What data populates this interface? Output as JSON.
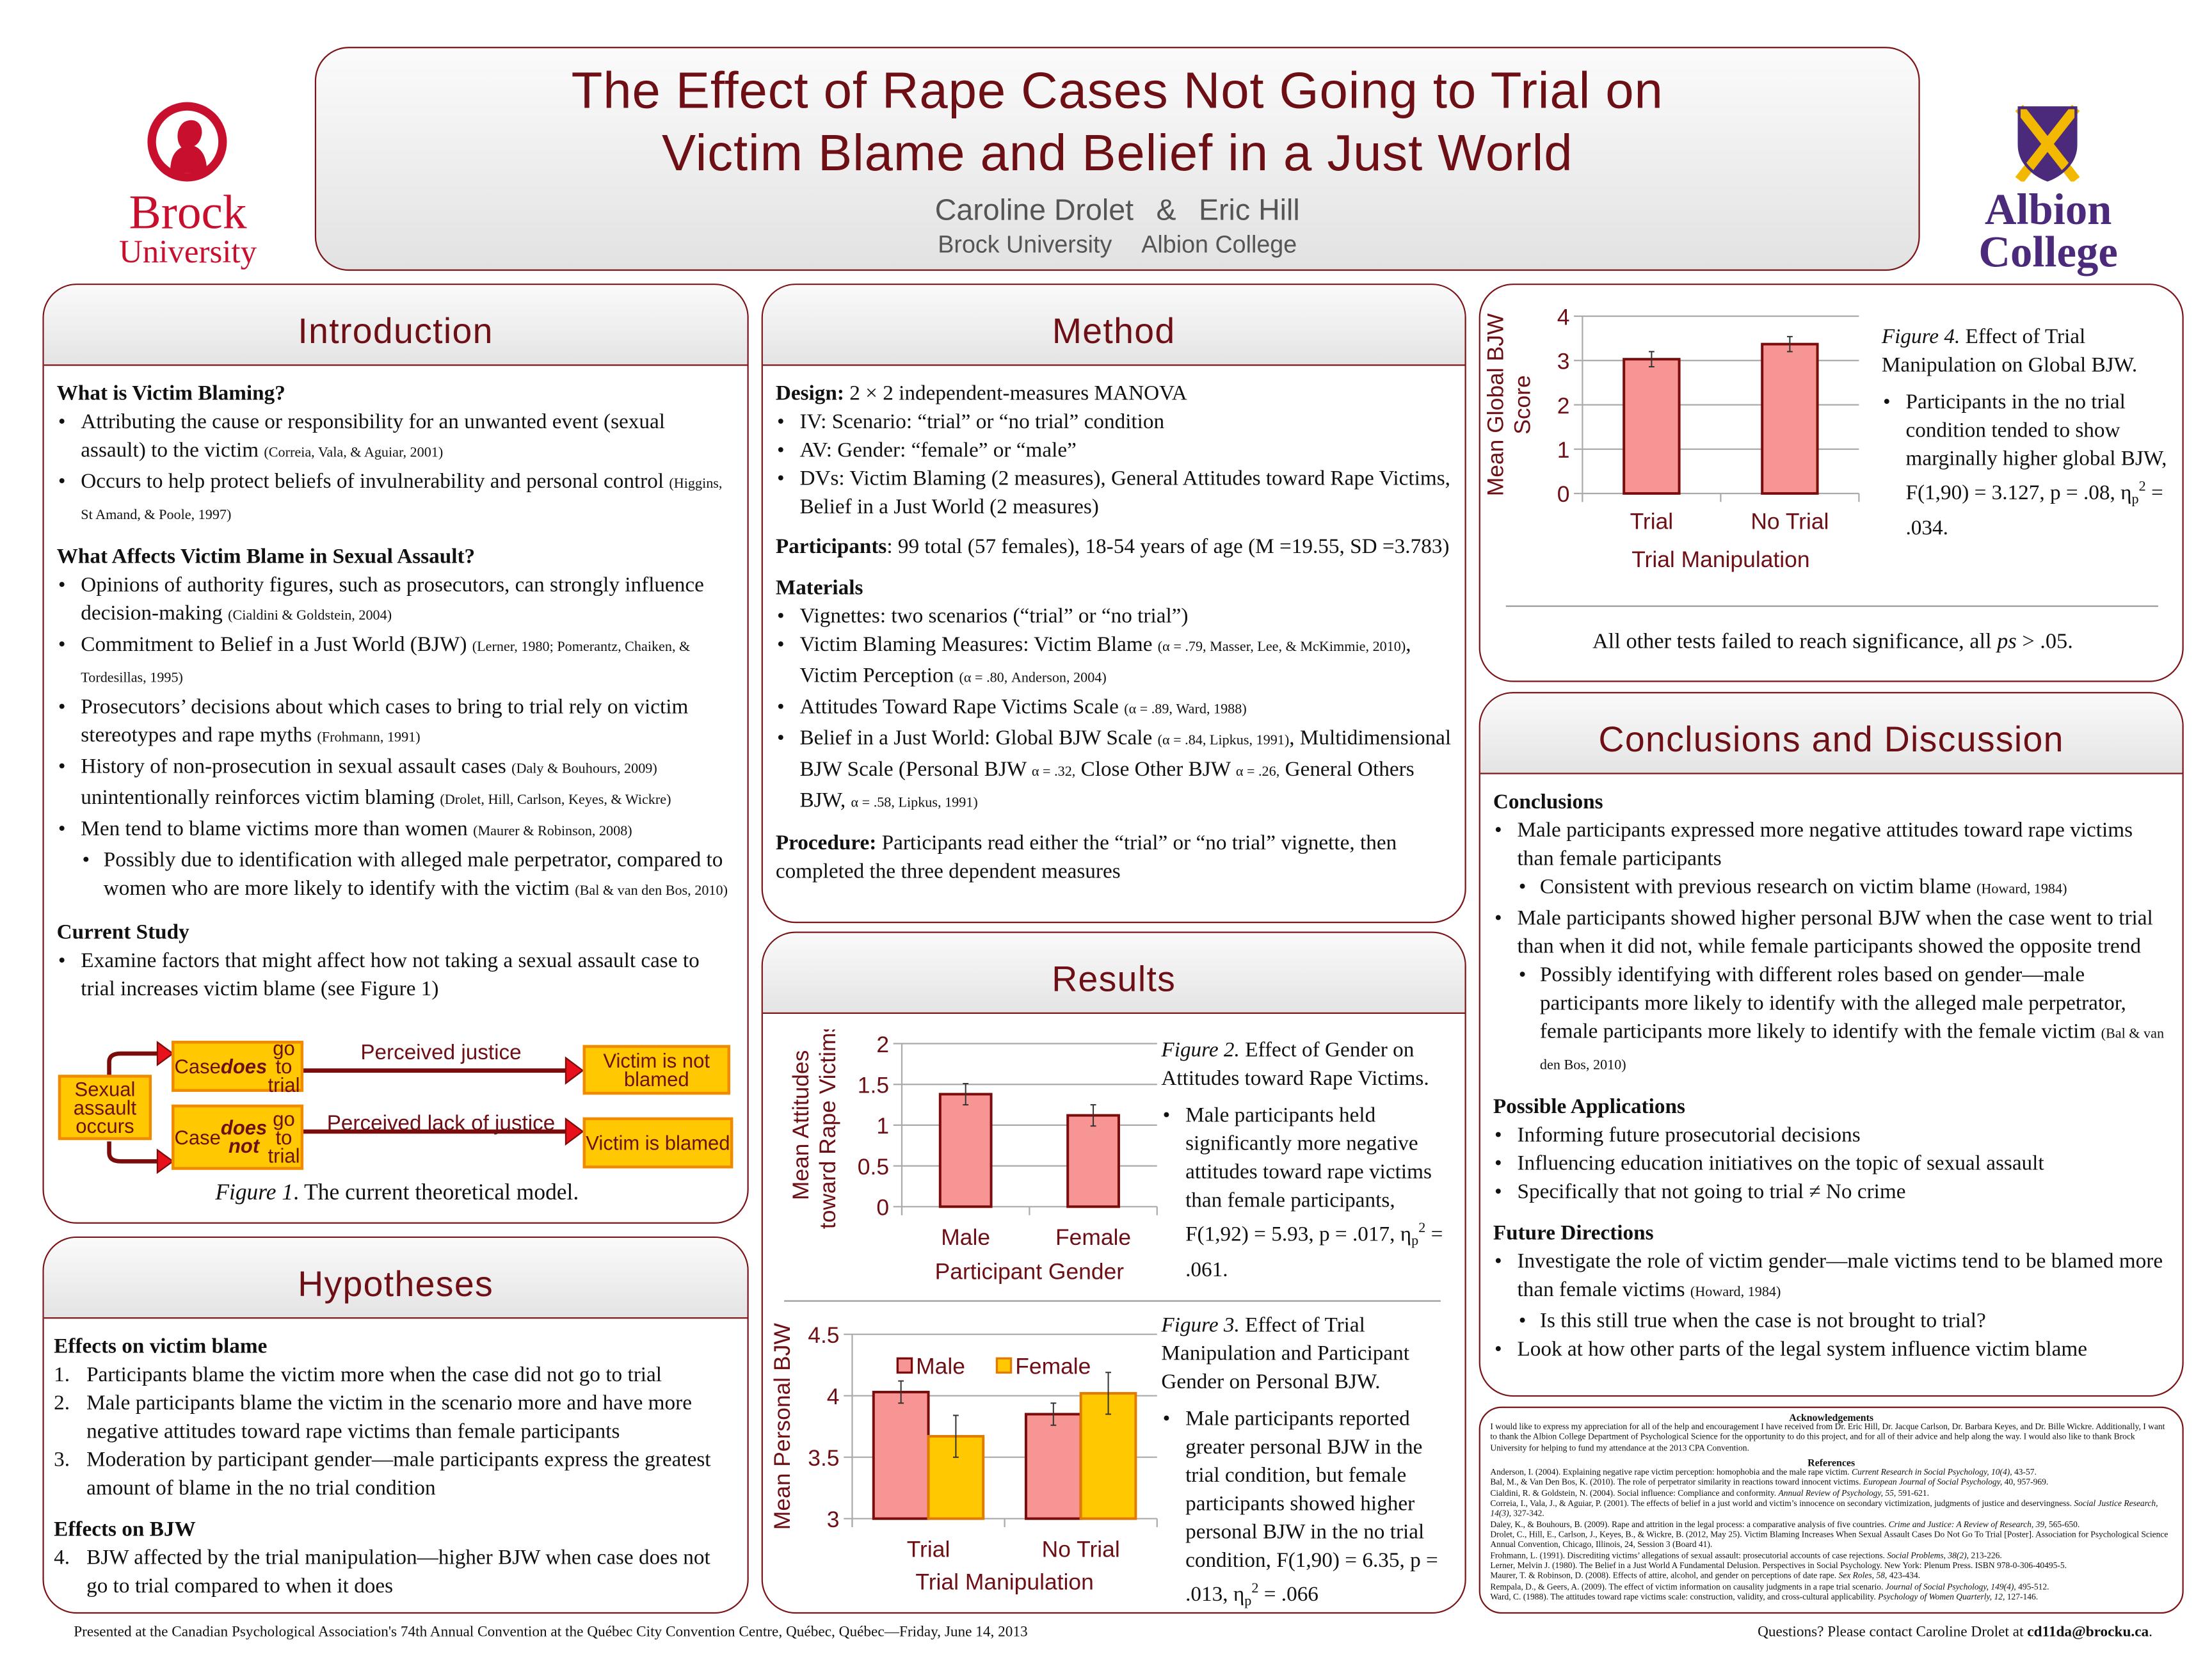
{
  "header": {
    "title_line1": "The Effect of Rape Cases Not Going to Trial on",
    "title_line2": "Victim Blame and Belief in a Just World",
    "author1": "Caroline Drolet",
    "author_sep": "&",
    "author2": "Eric Hill",
    "affil1": "Brock University",
    "affil2": "Albion College"
  },
  "logos": {
    "brock_line1": "Brock",
    "brock_line2": "University",
    "albion_line1": "Albion",
    "albion_line2": "College"
  },
  "colors": {
    "accent": "#6d0f15",
    "border": "#7b1418",
    "male_bar": "#f79494",
    "female_bar": "#ffc800",
    "box_fill": "#ffc800",
    "brock_red": "#c8102e",
    "albion_purple": "#4b2a7b"
  },
  "introduction": {
    "title": "Introduction",
    "blocks": [
      {
        "k": "h",
        "s": [
          {
            "t": "What is Victim Blaming?"
          }
        ]
      },
      {
        "k": "b",
        "s": [
          {
            "t": "Attributing the cause or responsibility for an unwanted event (sexual assault) to the victim "
          },
          {
            "t": "(Correia, Vala, & Aguiar, 2001)",
            "f": "s"
          }
        ]
      },
      {
        "k": "b",
        "s": [
          {
            "t": "Occurs to help protect beliefs of invulnerability and personal control "
          },
          {
            "t": "(Higgins, St Amand, & Poole, 1997)",
            "f": "s"
          }
        ]
      },
      {
        "k": "h",
        "s": [
          {
            "t": "What Affects Victim Blame in Sexual Assault?"
          }
        ]
      },
      {
        "k": "b",
        "s": [
          {
            "t": "Opinions of authority figures, such as prosecutors, can strongly influence decision-making "
          },
          {
            "t": "(Cialdini & Goldstein, 2004)",
            "f": "s"
          }
        ]
      },
      {
        "k": "b",
        "s": [
          {
            "t": "Commitment to Belief in a Just World (BJW) "
          },
          {
            "t": "(Lerner, 1980; Pomerantz, Chaiken, & Tordesillas, 1995)",
            "f": "s"
          }
        ]
      },
      {
        "k": "b",
        "s": [
          {
            "t": "Prosecutors’ decisions about which cases to bring to trial rely on victim stereotypes and  rape myths "
          },
          {
            "t": "(Frohmann, 1991)",
            "f": "s"
          }
        ]
      },
      {
        "k": "b",
        "s": [
          {
            "t": "History of non-prosecution in sexual assault cases "
          },
          {
            "t": "(Daly & Bouhours, 2009)",
            "f": "s"
          },
          {
            "t": " unintentionally reinforces victim blaming "
          },
          {
            "t": "(Drolet, Hill, Carlson, Keyes, & Wickre)",
            "f": "s"
          }
        ]
      },
      {
        "k": "b",
        "s": [
          {
            "t": "Men tend to blame victims more than women "
          },
          {
            "t": "(Maurer & Robinson, 2008)",
            "f": "s"
          }
        ]
      },
      {
        "k": "b2",
        "s": [
          {
            "t": "Possibly due to identification with alleged male perpetrator, compared to women who are more likely to identify with the victim "
          },
          {
            "t": "(Bal & van den Bos, 2010)",
            "f": "s"
          }
        ]
      },
      {
        "k": "h",
        "s": [
          {
            "t": "Current Study"
          }
        ]
      },
      {
        "k": "b",
        "s": [
          {
            "t": "Examine factors that might affect how not taking a sexual assault case to trial increases victim blame (see Figure 1)"
          }
        ]
      }
    ],
    "figure1": {
      "start_box": "Sexual assault occurs",
      "trial_box": [
        {
          "t": "Case "
        },
        {
          "t": "does",
          "f": "bi"
        },
        {
          "t": " go to trial"
        }
      ],
      "no_trial_box": [
        {
          "t": "Case "
        },
        {
          "t": "does not",
          "f": "bi"
        },
        {
          "t": " go to trial"
        }
      ],
      "trial_label": "Perceived justice",
      "no_trial_label": "Perceived lack of justice",
      "not_blamed_box": "Victim is not blamed",
      "blamed_box": "Victim is blamed",
      "caption_label": "Figure 1",
      "caption_text": ". The current theoretical model."
    }
  },
  "hypotheses": {
    "title": "Hypotheses",
    "blocks": [
      {
        "k": "h",
        "s": [
          {
            "t": "Effects on victim blame"
          }
        ]
      },
      {
        "k": "n",
        "n": "1.",
        "s": [
          {
            "t": "Participants blame the victim more when the case did not go to trial"
          }
        ]
      },
      {
        "k": "n",
        "n": "2.",
        "s": [
          {
            "t": "Male participants blame the victim in the scenario more and have more negative attitudes toward rape victims than female participants"
          }
        ]
      },
      {
        "k": "n",
        "n": "3.",
        "s": [
          {
            "t": "Moderation by participant gender—male participants express the greatest amount of blame in the no trial condition"
          }
        ]
      },
      {
        "k": "h",
        "s": [
          {
            "t": "Effects on BJW"
          }
        ]
      },
      {
        "k": "n",
        "n": "4.",
        "s": [
          {
            "t": "BJW affected by the trial manipulation—higher BJW when case does not go to trial compared to when it does"
          }
        ]
      }
    ]
  },
  "method": {
    "title": "Method",
    "blocks": [
      {
        "k": "p",
        "s": [
          {
            "t": "Design:",
            "f": "b"
          },
          {
            "t": " 2 × 2 independent-measures MANOVA"
          }
        ]
      },
      {
        "k": "b",
        "s": [
          {
            "t": "IV: Scenario: “trial” or “no trial” condition"
          }
        ]
      },
      {
        "k": "b",
        "s": [
          {
            "t": "AV: Gender: “female” or “male”"
          }
        ]
      },
      {
        "k": "b",
        "s": [
          {
            "t": "DVs: Victim Blaming (2 measures), General Attitudes toward Rape Victims, Belief in a Just World (2 measures)"
          }
        ]
      },
      {
        "k": "p",
        "s": [
          {
            "t": "Participants",
            "f": "b"
          },
          {
            "t": ": 99 total (57 females), 18-54 years of age (M =19.55, SD =3.783)"
          }
        ]
      },
      {
        "k": "h",
        "s": [
          {
            "t": "Materials"
          }
        ]
      },
      {
        "k": "b",
        "s": [
          {
            "t": "Vignettes: two scenarios (“trial” or “no trial”)"
          }
        ]
      },
      {
        "k": "b",
        "s": [
          {
            "t": "Victim Blaming Measures: Victim Blame "
          },
          {
            "t": "(α = .79, Masser, Lee, & McKimmie, 2010)",
            "f": "s"
          },
          {
            "t": ", Victim Perception "
          },
          {
            "t": "(α = .80, Anderson, 2004)",
            "f": "s"
          }
        ]
      },
      {
        "k": "b",
        "s": [
          {
            "t": "Attitudes Toward Rape Victims Scale "
          },
          {
            "t": "(α = .89, Ward, 1988)",
            "f": "s"
          }
        ]
      },
      {
        "k": "b",
        "s": [
          {
            "t": "Belief in a Just World: Global BJW Scale "
          },
          {
            "t": "(α = .84, Lipkus, 1991)",
            "f": "s"
          },
          {
            "t": ", Multidimensional BJW Scale  (Personal BJW "
          },
          {
            "t": "α = .32,",
            "f": "s"
          },
          {
            "t": " Close Other BJW "
          },
          {
            "t": "α = .26,",
            "f": "s"
          },
          {
            "t": " General Others BJW, "
          },
          {
            "t": "α = .58, Lipkus, 1991)",
            "f": "s"
          }
        ]
      },
      {
        "k": "p",
        "s": [
          {
            "t": "Procedure:",
            "f": "b"
          },
          {
            "t": " Participants read either the “trial” or “no trial” vignette, then completed the three dependent measures"
          }
        ]
      }
    ]
  },
  "results": {
    "title": "Results",
    "fig2_caption": [
      {
        "t": "Figure 2.",
        "f": "i"
      },
      {
        "t": "  Effect of Gender on Attitudes toward Rape Victims."
      }
    ],
    "fig2_bullet": [
      {
        "t": "Male participants held significantly more negative attitudes toward rape victims than female participants, F(1,92) = 5.93, p = .017, η"
      },
      {
        "t": "p",
        "f": "sub"
      },
      {
        "t": "2",
        "f": "sup"
      },
      {
        "t": " = .061."
      }
    ],
    "fig3_caption": [
      {
        "t": "Figure 3.",
        "f": "i"
      },
      {
        "t": " Effect of Trial Manipulation and Participant Gender on Personal BJW."
      }
    ],
    "fig3_bullet": [
      {
        "t": "Male participants reported greater personal BJW in the trial condition, but female participants showed higher personal BJW in the no trial condition, F(1,90) = 6.35, p = .013, η"
      },
      {
        "t": "p",
        "f": "sub"
      },
      {
        "t": "2",
        "f": "sup"
      },
      {
        "t": " = .066"
      }
    ]
  },
  "global_bjw": {
    "fig4_caption": [
      {
        "t": "Figure 4.",
        "f": "i"
      },
      {
        "t": " Effect of Trial Manipulation on Global BJW."
      }
    ],
    "fig4_bullet": [
      {
        "t": "Participants in the no trial condition tended to show marginally higher global BJW, F(1,90) = 3.127, p = .08, η"
      },
      {
        "t": "p",
        "f": "sub"
      },
      {
        "t": "2",
        "f": "sup"
      },
      {
        "t": " = .034."
      }
    ],
    "note": [
      {
        "t": "All other tests failed to reach significance, all "
      },
      {
        "t": "ps",
        "f": "i"
      },
      {
        "t": " > .05."
      }
    ]
  },
  "conclusions": {
    "title": "Conclusions and Discussion",
    "blocks": [
      {
        "k": "h",
        "s": [
          {
            "t": "Conclusions"
          }
        ]
      },
      {
        "k": "b",
        "s": [
          {
            "t": "Male participants expressed more negative attitudes toward rape victims than female participants"
          }
        ]
      },
      {
        "k": "b2",
        "s": [
          {
            "t": "Consistent with previous research on victim blame "
          },
          {
            "t": "(Howard, 1984)",
            "f": "s"
          }
        ]
      },
      {
        "k": "b",
        "s": [
          {
            "t": "Male participants showed higher personal BJW when the case went to trial than when it did not, while female participants showed the opposite trend"
          }
        ]
      },
      {
        "k": "b2",
        "s": [
          {
            "t": "Possibly identifying with different roles based on gender—male participants more likely to identify with the alleged male perpetrator, female participants more likely to identify with the female victim "
          },
          {
            "t": "(Bal & van den Bos, 2010)",
            "f": "s"
          }
        ]
      },
      {
        "k": "h",
        "s": [
          {
            "t": "Possible Applications"
          }
        ]
      },
      {
        "k": "b",
        "s": [
          {
            "t": "Informing future prosecutorial decisions"
          }
        ]
      },
      {
        "k": "b",
        "s": [
          {
            "t": "Influencing education initiatives on the topic of sexual assault"
          }
        ]
      },
      {
        "k": "b",
        "s": [
          {
            "t": "Specifically that not going to trial ≠ No crime"
          }
        ]
      },
      {
        "k": "h",
        "s": [
          {
            "t": "Future Directions"
          }
        ]
      },
      {
        "k": "b",
        "s": [
          {
            "t": "Investigate the role of victim gender—male victims tend to be blamed more than female victims "
          },
          {
            "t": "(Howard, 1984)",
            "f": "s"
          }
        ]
      },
      {
        "k": "b2",
        "s": [
          {
            "t": "Is this still true when the case is not brought to trial?"
          }
        ]
      },
      {
        "k": "b",
        "s": [
          {
            "t": "Look at how other parts of the legal system influence victim blame"
          }
        ]
      }
    ]
  },
  "acknowledgements": {
    "title": "Acknowledgements",
    "text": "I would like to express my appreciation for all of the help and encouragement I have received from Dr. Eric Hill, Dr. Jacque Carlson, Dr. Barbara Keyes, and Dr. Bille Wickre. Additionally, I want to thank the Albion College Department of Psychological Science for the opportunity to do this project, and for all of their advice and help along the way. I would also like to thank Brock University for helping to fund my attendance at the 2013 CPA Convention."
  },
  "references": {
    "title": "References",
    "items": [
      [
        {
          "t": "Anderson, I. (2004). Explaining negative rape victim perception: homophobia and the male rape victim. "
        },
        {
          "t": "Current Research in Social Psychology, 10(4),",
          "f": "i"
        },
        {
          "t": " 43-57."
        }
      ],
      [
        {
          "t": "Bal, M., & Van Den Bos, K. (2010). The role of perpetrator similarity in reactions toward innocent victims. "
        },
        {
          "t": "European Journal of Social Psychology,",
          "f": "i"
        },
        {
          "t": " 40, 957-969."
        }
      ],
      [
        {
          "t": "Cialdini, R. & Goldstein, N. (2004). Social influence: Compliance and conformity. "
        },
        {
          "t": "Annual Review of Psychology, 55,",
          "f": "i"
        },
        {
          "t": " 591-621."
        }
      ],
      [
        {
          "t": "Correia, I., Vala, J., & Aguiar, P. (2001). The effects of belief in a just world and victim’s innocence on secondary victimization, judgments of justice and deservingness. "
        },
        {
          "t": "Social Justice Research, 14(3),",
          "f": "i"
        },
        {
          "t": " 327-342."
        }
      ],
      [
        {
          "t": "Daley, K., & Bouhours, B. (2009). Rape and attrition in the legal process: a comparative analysis of five countries. "
        },
        {
          "t": "Crime and Justice: A Review of Research, 39,",
          "f": "i"
        },
        {
          "t": " 565-650."
        }
      ],
      [
        {
          "t": "Drolet, C., Hill, E., Carlson, J., Keyes, B., & Wickre, B. (2012, May 25). Victim Blaming Increases When Sexual Assault Cases Do Not Go To Trial [Poster]. Association for Psychological Science Annual Convention, Chicago, Illinois, 24, Session 3 (Board 41)."
        }
      ],
      [
        {
          "t": "Frohmann, L. (1991). Discrediting victims’ allegations of sexual assault: prosecutorial accounts of case rejections. "
        },
        {
          "t": "Social Problems, 38(2),",
          "f": "i"
        },
        {
          "t": " 213-226."
        }
      ],
      [
        {
          "t": "Lerner, Melvin J. (1980). The Belief in a Just World A Fundamental Delusion. Perspectives in Social Psychology. New York: Plenum Press. ISBN 978-0-306-40495-5."
        }
      ],
      [
        {
          "t": "Maurer, T. & Robinson, D. (2008). Effects of attire, alcohol, and gender on perceptions of date rape. "
        },
        {
          "t": "Sex Roles, 58,",
          "f": "i"
        },
        {
          "t": " 423-434."
        }
      ],
      [
        {
          "t": "Rempala, D., & Geers, A. (2009). The effect of victim information on causality judgments in a rape trial scenario. "
        },
        {
          "t": "Journal of Social Psychology, 149(4),",
          "f": "i"
        },
        {
          "t": " 495-512."
        }
      ],
      [
        {
          "t": "Ward, C. (1988). The attitudes toward rape victims scale: construction, validity, and cross-cultural applicability. "
        },
        {
          "t": "Psychology of Women Quarterly, 12,",
          "f": "i"
        },
        {
          "t": " 127-146."
        }
      ]
    ]
  },
  "footer": {
    "left": "Presented at the Canadian Psychological Association's 74th Annual Convention at the Québec City Convention Centre, Québec, Québec—Friday, June 14, 2013",
    "right_prefix": "Questions? Please contact Caroline Drolet at ",
    "email": "cd11da@brocku.ca",
    "right_suffix": "."
  },
  "chart_data": [
    {
      "id": "fig2",
      "type": "bar",
      "title": "Effect of Gender on Attitudes toward Rape Victims",
      "categories": [
        "Male",
        "Female"
      ],
      "series": [
        {
          "name": "Attitudes",
          "values": [
            1.38,
            1.12
          ],
          "errors": [
            0.13,
            0.13
          ]
        }
      ],
      "xlabel": "Participant Gender",
      "ylabel": [
        "Mean Attitudes",
        "toward Rape Victims"
      ],
      "ylim": [
        0,
        2
      ],
      "yticks": [
        "0",
        "0.5",
        "1",
        "1.5",
        "2"
      ],
      "ytick_values": [
        0,
        0.5,
        1,
        1.5,
        2
      ],
      "grid": true,
      "legend": null
    },
    {
      "id": "fig3",
      "type": "bar",
      "title": "Effect of Trial Manipulation and Participant Gender on Personal BJW",
      "categories": [
        "Trial",
        "No Trial"
      ],
      "series": [
        {
          "name": "Male",
          "values": [
            4.03,
            3.85
          ],
          "errors": [
            0.09,
            0.09
          ]
        },
        {
          "name": "Female",
          "values": [
            3.67,
            4.02
          ],
          "errors": [
            0.17,
            0.17
          ]
        }
      ],
      "xlabel": "Trial Manipulation",
      "ylabel": [
        "Mean Personal BJW"
      ],
      "ylim": [
        3,
        4.5
      ],
      "yticks": [
        "3",
        "3.5",
        "4",
        "4.5"
      ],
      "ytick_values": [
        3,
        3.5,
        4,
        4.5
      ],
      "grid": true,
      "legend": "top"
    },
    {
      "id": "fig4",
      "type": "bar",
      "title": "Effect of Trial Manipulation on Global BJW",
      "categories": [
        "Trial",
        "No Trial"
      ],
      "series": [
        {
          "name": "Global BJW",
          "values": [
            3.03,
            3.37
          ],
          "errors": [
            0.17,
            0.17
          ]
        }
      ],
      "xlabel": "Trial Manipulation",
      "ylabel": [
        "Mean Global BJW",
        "Score"
      ],
      "ylim": [
        0,
        4
      ],
      "yticks": [
        "0",
        "1",
        "2",
        "3",
        "4"
      ],
      "ytick_values": [
        0,
        1,
        2,
        3,
        4
      ],
      "grid": true,
      "legend": null
    }
  ]
}
